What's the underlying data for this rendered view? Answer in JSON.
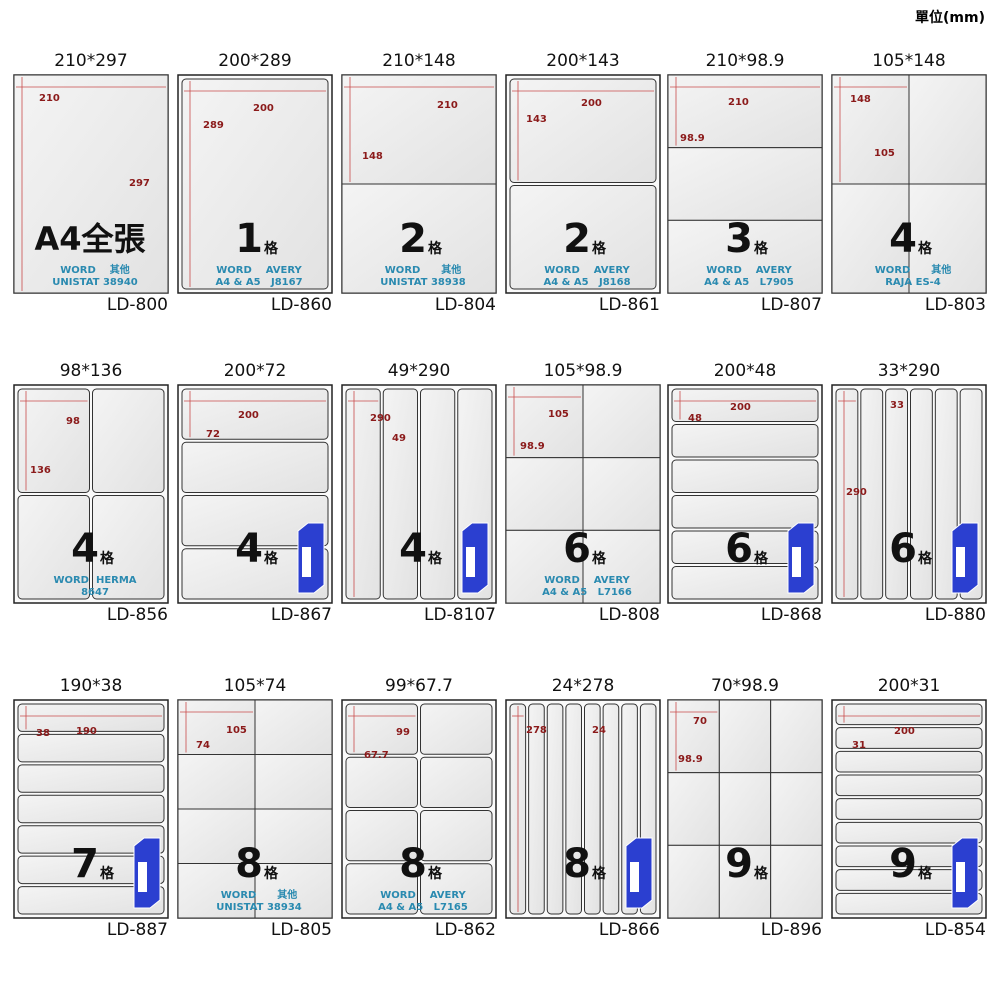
{
  "unit_note": "單位(mm)",
  "items": [
    {
      "size": "210*297",
      "dims": [
        "210",
        "297"
      ],
      "count": "A4全張",
      "compat": [
        "WORD    其他",
        "UNISTAT 38940"
      ],
      "code": "LD-800"
    },
    {
      "size": "200*289",
      "dims": [
        "200",
        "289"
      ],
      "count": "1",
      "count_unit": "格",
      "compat": [
        "WORD    AVERY",
        "A4 & A5   J8167"
      ],
      "code": "LD-860"
    },
    {
      "size": "210*148",
      "dims": [
        "210",
        "148"
      ],
      "count": "2",
      "count_unit": "格",
      "compat": [
        "WORD      其他",
        "UNISTAT 38938"
      ],
      "code": "LD-804"
    },
    {
      "size": "200*143",
      "dims": [
        "200",
        "143"
      ],
      "count": "2",
      "count_unit": "格",
      "compat": [
        "WORD    AVERY",
        "A4 & A5   J8168"
      ],
      "code": "LD-861"
    },
    {
      "size": "210*98.9",
      "dims": [
        "210",
        "98.9"
      ],
      "count": "3",
      "count_unit": "格",
      "compat": [
        "WORD    AVERY",
        "A4 & A5   L7905"
      ],
      "code": "LD-807"
    },
    {
      "size": "105*148",
      "dims": [
        "148",
        "105"
      ],
      "count": "4",
      "count_unit": "格",
      "compat": [
        "WORD      其他",
        "RAJA ES-4"
      ],
      "code": "LD-803"
    },
    {
      "size": "98*136",
      "dims": [
        "98",
        "136"
      ],
      "count": "4",
      "count_unit": "格",
      "compat": [
        "WORD  HERMA",
        "8647"
      ],
      "code": "LD-856"
    },
    {
      "size": "200*72",
      "dims": [
        "200",
        "72"
      ],
      "count": "4",
      "count_unit": "格",
      "code": "LD-867"
    },
    {
      "size": "49*290",
      "dims": [
        "290",
        "49"
      ],
      "count": "4",
      "count_unit": "格",
      "code": "LD-8107"
    },
    {
      "size": "105*98.9",
      "dims": [
        "105",
        "98.9"
      ],
      "count": "6",
      "count_unit": "格",
      "compat": [
        "WORD    AVERY",
        "A4 & A5   L7166"
      ],
      "code": "LD-808"
    },
    {
      "size": "200*48",
      "dims": [
        "48",
        "200"
      ],
      "count": "6",
      "count_unit": "格",
      "code": "LD-868"
    },
    {
      "size": "33*290",
      "dims": [
        "33",
        "290"
      ],
      "count": "6",
      "count_unit": "格",
      "code": "LD-880"
    },
    {
      "size": "190*38",
      "dims": [
        "38",
        "190"
      ],
      "count": "7",
      "count_unit": "格",
      "code": "LD-887"
    },
    {
      "size": "105*74",
      "dims": [
        "105",
        "74"
      ],
      "count": "8",
      "count_unit": "格",
      "compat": [
        "WORD      其他",
        "UNISTAT 38934"
      ],
      "code": "LD-805"
    },
    {
      "size": "99*67.7",
      "dims": [
        "99",
        "67.7"
      ],
      "count": "8",
      "count_unit": "格",
      "compat": [
        "WORD    AVERY",
        "A4 & A5   L7165"
      ],
      "code": "LD-862"
    },
    {
      "size": "24*278",
      "dims": [
        "278",
        "24"
      ],
      "count": "8",
      "count_unit": "格",
      "code": "LD-866"
    },
    {
      "size": "70*98.9",
      "dims": [
        "70",
        "98.9"
      ],
      "count": "9",
      "count_unit": "格",
      "code": "LD-896"
    },
    {
      "size": "200*31",
      "dims": [
        "200",
        "31"
      ],
      "count": "9",
      "count_unit": "格",
      "code": "LD-854"
    }
  ]
}
